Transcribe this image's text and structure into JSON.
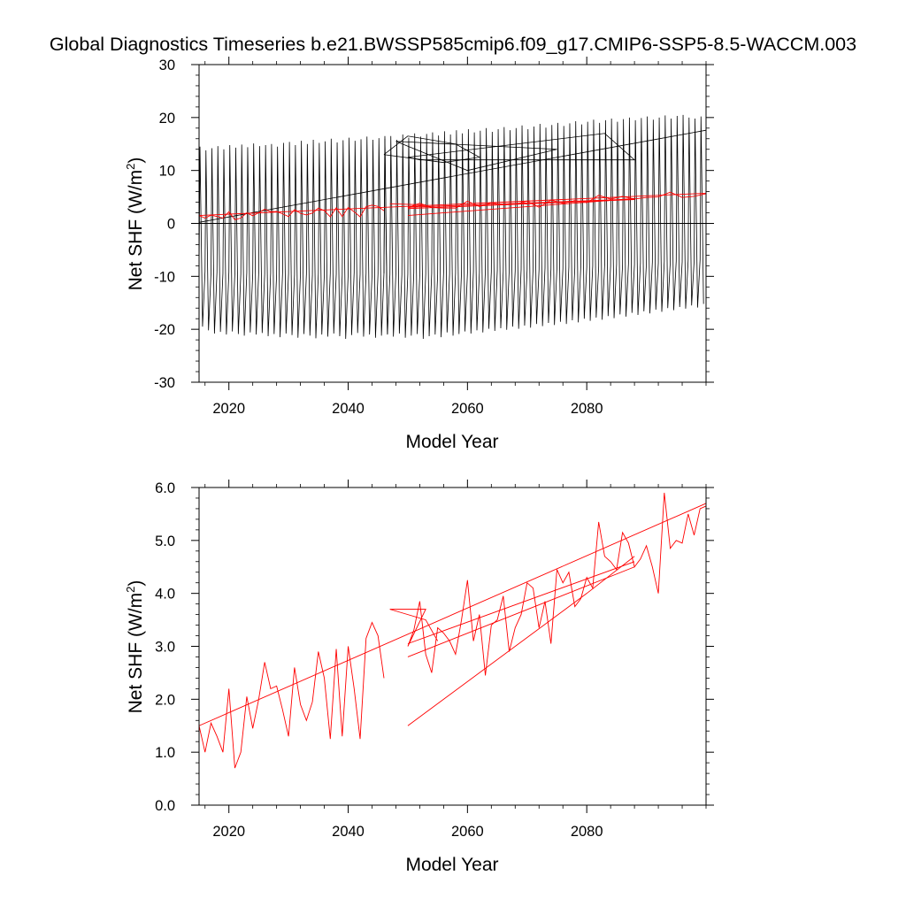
{
  "title": "Global Diagnostics Timeseries b.e21.BWSSP585cmip6.f09_g17.CMIP6-SSP5-8.5-WACCM.003",
  "colors": {
    "monthly": "#000000",
    "annual": "#ff0000",
    "background": "#ffffff"
  },
  "chart_data": [
    {
      "type": "line",
      "xlabel": "Model Year",
      "ylabel_main": "Net SHF (W/m",
      "ylabel_sup": "2",
      "ylabel_close": ")",
      "xlim": [
        2015,
        2100
      ],
      "ylim": [
        -30,
        30
      ],
      "xticks": [
        2020,
        2040,
        2060,
        2080
      ],
      "xtick_labels": [
        "2020",
        "2040",
        "2060",
        "2080"
      ],
      "yticks": [
        -30,
        -20,
        -10,
        0,
        10,
        20,
        30
      ],
      "ytick_labels": [
        "-30",
        "-20",
        "-10",
        "0",
        "10",
        "20",
        "30"
      ],
      "zero_line": 0,
      "monthly_series": {
        "segments": [
          {
            "year_start": 2015,
            "year_end": 2047,
            "max": [
              14.5,
              13.8,
              14.2,
              14.6,
              14.0,
              14.8,
              14.3,
              14.9,
              14.4,
              15.1,
              14.6,
              14.8,
              15.0,
              14.5,
              15.2,
              15.4,
              14.8,
              15.6,
              15.0,
              15.8,
              15.2,
              15.5,
              16.0,
              15.3,
              15.7,
              16.2,
              15.6,
              15.9,
              16.4,
              15.8,
              16.1,
              16.5
            ],
            "min": [
              -19.5,
              -20.2,
              -20.8,
              -20.5,
              -21.0,
              -20.4,
              -20.9,
              -21.2,
              -20.6,
              -21.0,
              -20.7,
              -21.3,
              -20.9,
              -21.5,
              -20.8,
              -21.1,
              -21.6,
              -20.9,
              -21.2,
              -21.7,
              -21.0,
              -21.4,
              -20.8,
              -21.3,
              -21.8,
              -21.1,
              -20.7,
              -21.4,
              -21.0,
              -21.6,
              -21.2,
              -20.9
            ]
          },
          {
            "year_start": 2046,
            "year_end": 2100,
            "max": [
              16.0,
              16.5,
              15.8,
              16.8,
              16.2,
              17.0,
              16.4,
              16.9,
              17.2,
              16.6,
              17.4,
              16.8,
              17.6,
              17.0,
              17.8,
              17.2,
              17.5,
              18.0,
              17.3,
              17.8,
              18.2,
              17.6,
              18.0,
              18.5,
              17.8,
              18.3,
              18.8,
              18.1,
              18.6,
              19.0,
              18.4,
              18.9,
              19.3,
              18.7,
              19.2,
              19.6,
              19.0,
              19.5,
              19.8,
              19.2,
              19.7,
              20.0,
              19.5,
              19.9,
              20.2,
              19.6,
              20.0,
              20.4,
              19.8,
              20.3,
              20.5,
              20.0,
              19.8,
              20.2
            ],
            "min": [
              -21.0,
              -21.4,
              -20.8,
              -21.6,
              -21.2,
              -20.9,
              -21.8,
              -21.3,
              -21.0,
              -21.5,
              -20.6,
              -21.2,
              -20.9,
              -20.4,
              -20.8,
              -20.2,
              -20.6,
              -19.9,
              -20.3,
              -19.8,
              -20.1,
              -19.5,
              -19.9,
              -19.3,
              -19.7,
              -19.0,
              -19.4,
              -18.8,
              -19.2,
              -18.6,
              -19.0,
              -18.3,
              -18.7,
              -18.0,
              -18.4,
              -17.8,
              -18.2,
              -17.5,
              -17.9,
              -17.2,
              -17.6,
              -16.9,
              -17.3,
              -16.6,
              -17.0,
              -16.3,
              -16.7,
              -16.0,
              -16.4,
              -15.8,
              -16.1,
              -15.5,
              -15.9,
              -15.2
            ]
          }
        ],
        "max_month": 0.15,
        "min_month": 0.58,
        "extra_lines": [
          {
            "x": [
              2046,
              2050,
              2058,
              2062,
              2056,
              2046
            ],
            "y": [
              13.0,
              16.5,
              15.0,
              12.5,
              11.5,
              13.0
            ]
          },
          {
            "x": [
              2050,
              2083,
              2088,
              2052,
              2050
            ],
            "y": [
              12.5,
              17.0,
              12.0,
              12.0,
              12.5
            ]
          },
          {
            "x": [
              2048,
              2075,
              2060,
              2048
            ],
            "y": [
              15.5,
              14.0,
              10.0,
              15.5
            ]
          }
        ]
      },
      "annual_series": {
        "segments": [
          {
            "x": [
              2015,
              2016,
              2017,
              2018,
              2019,
              2020,
              2021,
              2022,
              2023,
              2024,
              2025,
              2026,
              2027,
              2028,
              2029,
              2030,
              2031,
              2032,
              2033,
              2034,
              2035,
              2036,
              2037,
              2038,
              2039,
              2040,
              2041,
              2042,
              2043,
              2044,
              2045,
              2046
            ],
            "y": [
              1.5,
              1.0,
              1.55,
              1.3,
              1.0,
              2.2,
              0.7,
              1.0,
              2.0,
              1.45,
              2.0,
              2.7,
              2.2,
              2.25,
              1.8,
              1.3,
              2.6,
              1.9,
              1.6,
              1.95,
              2.9,
              2.4,
              1.25,
              2.95,
              1.3,
              3.0,
              2.2,
              1.25,
              3.15,
              3.45,
              3.2,
              2.4
            ]
          },
          {
            "x": [
              2047,
              2053,
              2050,
              2052,
              2054,
              2056,
              2058,
              2060,
              2062,
              2064,
              2066,
              2068,
              2070,
              2072,
              2074,
              2076,
              2078,
              2080,
              2082,
              2084,
              2086,
              2088,
              2090,
              2092,
              2094,
              2096,
              2098,
              2100
            ],
            "y": [
              3.7,
              3.5,
              3.0,
              3.8,
              3.0,
              2.9,
              2.9,
              4.2,
              3.2,
              3.9,
              3.5,
              3.6,
              4.2,
              3.05,
              4.4,
              3.8,
              4.3,
              3.9,
              5.3,
              4.6,
              5.1,
              4.6,
              4.9,
              5.0,
              5.9,
              4.9,
              5.1,
              5.6
            ]
          }
        ],
        "trend": {
          "x": [
            2015,
            2100
          ],
          "y": [
            1.5,
            5.7
          ]
        },
        "extra_lines": [
          {
            "x": [
              2050,
              2080,
              2088
            ],
            "y": [
              1.5,
              4.0,
              4.7
            ]
          },
          {
            "x": [
              2050,
              2088
            ],
            "y": [
              2.8,
              4.5
            ]
          },
          {
            "x": [
              2050,
              2088
            ],
            "y": [
              3.05,
              4.6
            ]
          }
        ]
      }
    },
    {
      "type": "line",
      "xlabel": "Model Year",
      "ylabel_main": "Net SHF (W/m",
      "ylabel_sup": "2",
      "ylabel_close": ")",
      "xlim": [
        2015,
        2100
      ],
      "ylim": [
        0.0,
        6.0
      ],
      "xticks": [
        2020,
        2040,
        2060,
        2080
      ],
      "xtick_labels": [
        "2020",
        "2040",
        "2060",
        "2080"
      ],
      "yticks": [
        0,
        1,
        2,
        3,
        4,
        5,
        6
      ],
      "ytick_labels": [
        "0.0",
        "1.0",
        "2.0",
        "3.0",
        "4.0",
        "5.0",
        "6.0"
      ],
      "annual_series": {
        "segments": [
          {
            "x": [
              2015,
              2016,
              2017,
              2018,
              2019,
              2020,
              2021,
              2022,
              2023,
              2024,
              2025,
              2026,
              2027,
              2028,
              2029,
              2030,
              2031,
              2032,
              2033,
              2034,
              2035,
              2036,
              2037,
              2038,
              2039,
              2040,
              2041,
              2042,
              2043,
              2044,
              2045,
              2046
            ],
            "y": [
              1.5,
              1.0,
              1.55,
              1.3,
              1.0,
              2.2,
              0.7,
              1.0,
              2.05,
              1.45,
              2.0,
              2.7,
              2.2,
              2.25,
              1.8,
              1.3,
              2.6,
              1.9,
              1.6,
              1.95,
              2.9,
              2.4,
              1.25,
              2.95,
              1.3,
              3.0,
              2.2,
              1.25,
              3.15,
              3.45,
              3.2,
              2.4
            ]
          },
          {
            "x": [
              2047,
              2053,
              2050,
              2051,
              2052,
              2053,
              2054,
              2055,
              2056,
              2057,
              2058,
              2059,
              2060,
              2061,
              2062,
              2063,
              2064,
              2065,
              2066,
              2067,
              2068,
              2069,
              2070,
              2071,
              2072,
              2073,
              2074,
              2075,
              2076,
              2077,
              2078,
              2079,
              2080,
              2081,
              2082,
              2083,
              2084,
              2085,
              2086,
              2087,
              2088,
              2089,
              2090,
              2091,
              2092,
              2093,
              2094,
              2095,
              2096,
              2097,
              2098,
              2099,
              2100
            ],
            "y": [
              3.7,
              3.7,
              3.0,
              3.3,
              3.85,
              2.85,
              2.5,
              3.35,
              3.25,
              3.1,
              2.85,
              3.5,
              4.25,
              3.1,
              3.6,
              2.45,
              3.4,
              3.5,
              3.95,
              2.9,
              3.35,
              3.6,
              4.2,
              4.1,
              3.35,
              3.85,
              3.05,
              4.45,
              4.2,
              4.4,
              3.75,
              3.9,
              4.3,
              4.1,
              5.35,
              4.7,
              4.6,
              4.45,
              5.15,
              4.95,
              4.5,
              4.65,
              4.9,
              4.5,
              4.0,
              5.9,
              4.85,
              5.0,
              4.95,
              5.5,
              5.1,
              5.6,
              5.65
            ]
          }
        ],
        "trend": {
          "x": [
            2015,
            2100
          ],
          "y": [
            1.5,
            5.7
          ]
        },
        "extra_lines": [
          {
            "x": [
              2050,
              2080,
              2088
            ],
            "y": [
              1.5,
              4.0,
              4.7
            ]
          },
          {
            "x": [
              2050,
              2088
            ],
            "y": [
              2.8,
              4.5
            ]
          },
          {
            "x": [
              2050,
              2088
            ],
            "y": [
              3.05,
              4.6
            ]
          },
          {
            "x": [
              2047,
              2053,
              2055
            ],
            "y": [
              3.7,
              3.5,
              3.1
            ]
          }
        ]
      }
    }
  ]
}
